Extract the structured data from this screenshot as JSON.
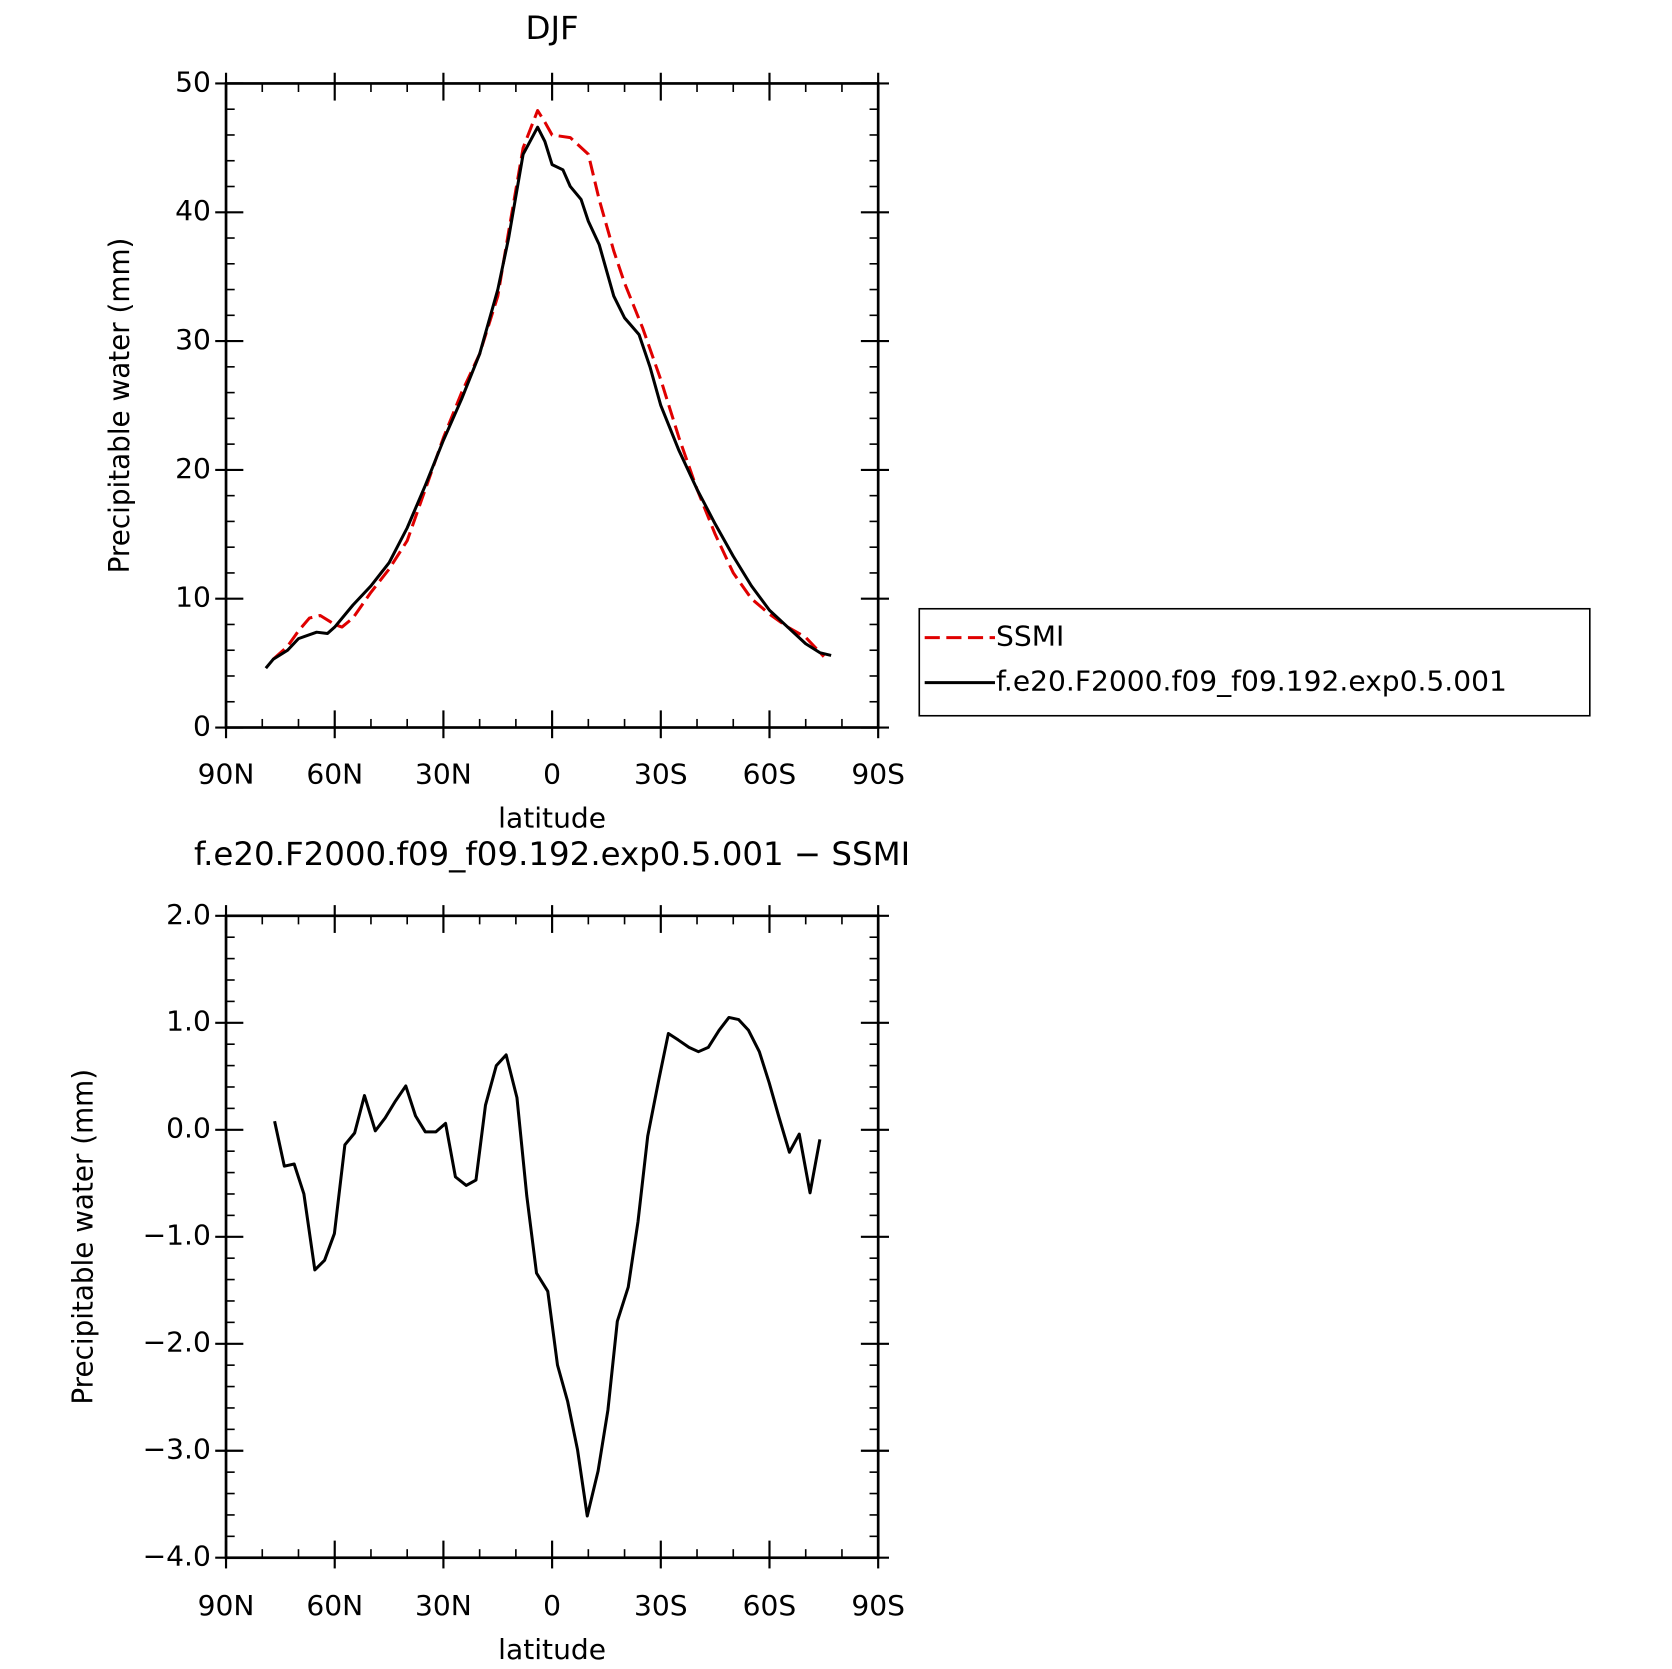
{
  "chart_data": [
    {
      "type": "line",
      "title": "DJF",
      "x_label": "latitude",
      "y_label": "Precipitable water (mm)",
      "xlim": [
        90,
        -90
      ],
      "xticks": [
        {
          "value": 90,
          "label": "90N"
        },
        {
          "value": 60,
          "label": "60N"
        },
        {
          "value": 30,
          "label": "30N"
        },
        0,
        {
          "value": -30,
          "label": "30S"
        },
        {
          "value": -60,
          "label": "60S"
        },
        {
          "value": -90,
          "label": "90S"
        }
      ],
      "ylim": [
        0,
        50
      ],
      "yticks": [
        0,
        10,
        20,
        30,
        40,
        50
      ],
      "legend": "right",
      "series": [
        {
          "name": "SSMI",
          "color": "#e00000",
          "dash": true,
          "x": [
            77,
            73,
            70,
            67,
            64,
            60,
            58,
            55,
            50,
            45,
            40,
            35,
            30,
            25,
            20,
            15,
            12,
            8,
            4,
            2,
            0,
            -5,
            -10,
            -13,
            -17,
            -20,
            -25,
            -30,
            -35,
            -40,
            -45,
            -50,
            -55,
            -60,
            -65,
            -70,
            -75
          ],
          "values": [
            5.3,
            6.3,
            7.5,
            8.5,
            8.7,
            8.0,
            7.8,
            8.5,
            10.5,
            12.3,
            14.5,
            18.5,
            22.5,
            26,
            29,
            33.5,
            38.5,
            45,
            47.9,
            47,
            46,
            45.8,
            44.5,
            41,
            37,
            34.5,
            31,
            27,
            22.5,
            18.5,
            15,
            12,
            10,
            8.8,
            7.8,
            7,
            5.5
          ]
        },
        {
          "name": "f.e20.F2000.f09_f09.192.exp0.5.001",
          "color": "#000000",
          "dash": false,
          "x": [
            79,
            77,
            73,
            70,
            65,
            62,
            60,
            55,
            50,
            45,
            40,
            35,
            30,
            25,
            20,
            15,
            12,
            8,
            4,
            2,
            0,
            -3,
            -5,
            -8,
            -10,
            -13,
            -17,
            -20,
            -24,
            -27,
            -30,
            -35,
            -40,
            -45,
            -50,
            -55,
            -60,
            -65,
            -70,
            -74,
            -77
          ],
          "values": [
            4.6,
            5.3,
            6.0,
            6.9,
            7.4,
            7.3,
            7.8,
            9.5,
            11.0,
            12.8,
            15.5,
            18.8,
            22.3,
            25.5,
            29.0,
            34.0,
            38.0,
            44.5,
            46.6,
            45.5,
            43.7,
            43.3,
            42.0,
            41.0,
            39.3,
            37.5,
            33.5,
            31.8,
            30.5,
            28.0,
            25.0,
            21.5,
            18.5,
            15.8,
            13.3,
            11.0,
            9.1,
            7.8,
            6.5,
            5.8,
            5.6
          ]
        }
      ]
    },
    {
      "type": "line",
      "title": "f.e20.F2000.f09_f09.192.exp0.5.001 − SSMI",
      "x_label": "latitude",
      "y_label": "Precipitable water (mm)",
      "xlim": [
        90,
        -90
      ],
      "xticks": [
        {
          "value": 90,
          "label": "90N"
        },
        {
          "value": 60,
          "label": "60N"
        },
        {
          "value": 30,
          "label": "30N"
        },
        0,
        {
          "value": -30,
          "label": "30S"
        },
        {
          "value": -60,
          "label": "60S"
        },
        {
          "value": -90,
          "label": "90S"
        }
      ],
      "ylim": [
        -4,
        2
      ],
      "yticks": [
        {
          "value": -4,
          "label": "−4.0"
        },
        {
          "value": -3,
          "label": "−3.0"
        },
        {
          "value": -2,
          "label": "−2.0"
        },
        {
          "value": -1,
          "label": "−1.0"
        },
        {
          "value": 0,
          "label": "0.0"
        },
        {
          "value": 1,
          "label": "1.0"
        },
        {
          "value": 2,
          "label": "2.0"
        }
      ],
      "series": [
        {
          "color": "#000000",
          "x": [
            76.6,
            73.9,
            71.2,
            68.5,
            65.5,
            62.8,
            60.1,
            57.2,
            54.5,
            51.8,
            48.8,
            46.1,
            43.4,
            40.4,
            37.7,
            35,
            32.1,
            29.4,
            26.7,
            23.7,
            21,
            18.4,
            15.4,
            12.7,
            9.7,
            7,
            4.3,
            1.2,
            -1.5,
            -4.3,
            -7,
            -9.7,
            -12.7,
            -15.4,
            -18,
            -21,
            -23.7,
            -26.4,
            -29.4,
            -32.1,
            -34.8,
            -37.8,
            -40.4,
            -43.1,
            -46.1,
            -48.8,
            -51.5,
            -54.2,
            -57.2,
            -59.9,
            -62.6,
            -65.5,
            -68.2,
            -71.2,
            -73.9
          ],
          "values": [
            0.08,
            -0.34,
            -0.32,
            -0.6,
            -1.31,
            -1.22,
            -0.97,
            -0.14,
            -0.03,
            0.32,
            -0.01,
            0.11,
            0.26,
            0.41,
            0.13,
            -0.02,
            -0.02,
            0.06,
            -0.44,
            -0.52,
            -0.47,
            0.23,
            0.6,
            0.7,
            0.3,
            -0.62,
            -1.34,
            -1.51,
            -2.2,
            -2.54,
            -2.99,
            -3.61,
            -3.19,
            -2.62,
            -1.79,
            -1.47,
            -0.86,
            -0.06,
            0.46,
            0.9,
            0.84,
            0.77,
            0.73,
            0.77,
            0.93,
            1.05,
            1.03,
            0.93,
            0.73,
            0.44,
            0.12,
            -0.21,
            -0.04,
            -0.59,
            -0.09
          ]
        }
      ]
    }
  ]
}
